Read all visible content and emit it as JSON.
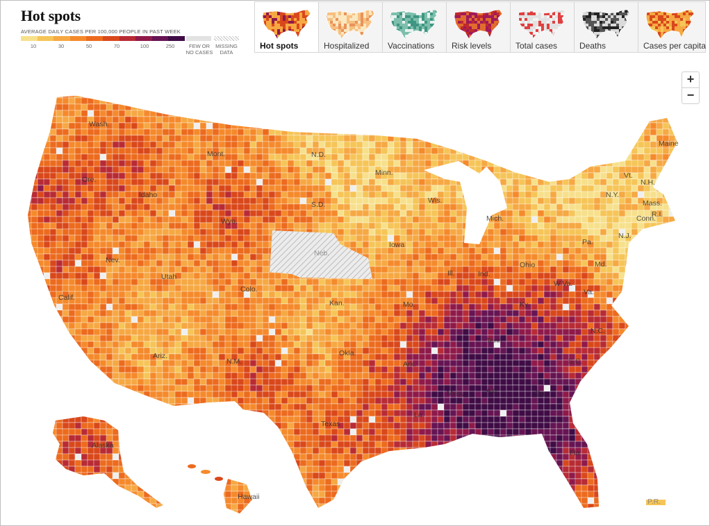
{
  "title": "Hot spots",
  "legend": {
    "caption": "AVERAGE DAILY CASES PER 100,000 PEOPLE IN PAST WEEK",
    "ticks": [
      "10",
      "30",
      "50",
      "70",
      "100",
      "250"
    ],
    "colors": [
      "#f7e08c",
      "#f6c558",
      "#f6a843",
      "#f58a2c",
      "#ec6b1e",
      "#d9481b",
      "#b82b35",
      "#8f1a4a",
      "#661453",
      "#3f0c45"
    ],
    "few_cases": "FEW OR NO CASES",
    "missing_data": "MISSING DATA"
  },
  "tabs": [
    {
      "label": "Hot spots",
      "active": true,
      "thumb": [
        "#f6a843",
        "#d9481b",
        "#8f1a4a"
      ]
    },
    {
      "label": "Hospitalized",
      "active": false,
      "thumb": [
        "#fbe7c0",
        "#f6c080",
        "#e9935a"
      ]
    },
    {
      "label": "Vaccinations",
      "active": false,
      "thumb": [
        "#7dbfac",
        "#3f9682",
        "#e8f2ef"
      ]
    },
    {
      "label": "Risk levels",
      "active": false,
      "thumb": [
        "#e06c2e",
        "#a1195b",
        "#c02a2a"
      ]
    },
    {
      "label": "Total cases",
      "active": false,
      "thumb": [
        "#e2e2e2",
        "#e04040",
        "#f2f2f2"
      ]
    },
    {
      "label": "Deaths",
      "active": false,
      "thumb": [
        "#dadada",
        "#555555",
        "#222222"
      ]
    },
    {
      "label": "Cases per capita",
      "active": false,
      "thumb": [
        "#f6a843",
        "#d9481b",
        "#f6c558"
      ]
    }
  ],
  "zoom": {
    "in": "+",
    "out": "−"
  },
  "map_colors": {
    "missing": "#e4e4e4",
    "few": "#efefef",
    "border": "#ffffff",
    "lake": "#ffffff"
  },
  "state_labels": [
    "Wash.",
    "Ore.",
    "Idaho",
    "Mont.",
    "Wyo.",
    "Nev.",
    "Calif.",
    "Utah",
    "Colo.",
    "Ariz.",
    "N.M.",
    "N.D.",
    "S.D.",
    "Neb.",
    "Kan.",
    "Okla.",
    "Texas",
    "Minn.",
    "Iowa",
    "Mo.",
    "Ark.",
    "La.",
    "Wis.",
    "Ill.",
    "Mich.",
    "Ind.",
    "Ohio",
    "Ky.",
    "Tenn.",
    "Miss.",
    "Ala.",
    "Ga.",
    "Fla.",
    "S.C.",
    "N.C.",
    "Va.",
    "W.Va.",
    "Pa.",
    "N.Y.",
    "Vt.",
    "N.H.",
    "Maine",
    "Mass.",
    "R.I.",
    "Conn.",
    "N.J.",
    "Md.",
    "Alaska",
    "Hawaii",
    "P.R."
  ]
}
